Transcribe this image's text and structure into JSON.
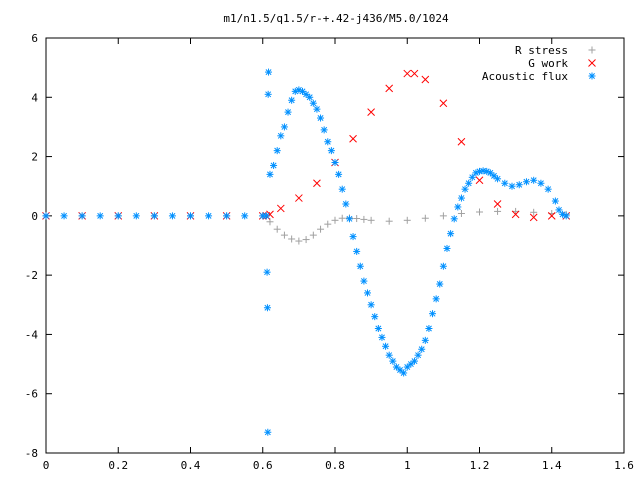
{
  "chart_data": {
    "type": "scatter",
    "title": "m1/n1.5/q1.5/r-+.42-j436/M5.0/1024",
    "xlabel": "",
    "ylabel": "",
    "xlim": [
      0,
      1.6
    ],
    "ylim": [
      -8,
      6
    ],
    "x_ticks": [
      "0",
      "0.2",
      "0.4",
      "0.6",
      "0.8",
      "1",
      "1.2",
      "1.4",
      "1.6"
    ],
    "y_ticks": [
      "-8",
      "-6",
      "-4",
      "-2",
      "0",
      "2",
      "4",
      "6"
    ],
    "x_tick_values": [
      0,
      0.2,
      0.4,
      0.6,
      0.8,
      1.0,
      1.2,
      1.4,
      1.6
    ],
    "y_tick_values": [
      -8,
      -6,
      -4,
      -2,
      0,
      2,
      4,
      6
    ],
    "grid": false,
    "legend_position": "top-right",
    "series": [
      {
        "name": "R stress",
        "marker": "+",
        "color": "#a0a0a0",
        "x": [
          0.0,
          0.1,
          0.2,
          0.3,
          0.4,
          0.5,
          0.6,
          0.61,
          0.62,
          0.64,
          0.66,
          0.68,
          0.7,
          0.72,
          0.74,
          0.76,
          0.78,
          0.8,
          0.82,
          0.84,
          0.86,
          0.88,
          0.9,
          0.95,
          1.0,
          1.05,
          1.1,
          1.15,
          1.2,
          1.25,
          1.3,
          1.35,
          1.4,
          1.44
        ],
        "y": [
          0.0,
          0.0,
          0.0,
          0.0,
          0.0,
          0.0,
          0.0,
          0.0,
          -0.2,
          -0.45,
          -0.65,
          -0.78,
          -0.85,
          -0.8,
          -0.65,
          -0.45,
          -0.28,
          -0.15,
          -0.08,
          -0.07,
          -0.09,
          -0.12,
          -0.15,
          -0.18,
          -0.15,
          -0.08,
          0.0,
          0.08,
          0.13,
          0.15,
          0.15,
          0.12,
          0.08,
          0.05
        ]
      },
      {
        "name": "G work",
        "marker": "x",
        "color": "#ff0000",
        "x": [
          0.0,
          0.1,
          0.2,
          0.3,
          0.4,
          0.5,
          0.6,
          0.61,
          0.62,
          0.65,
          0.7,
          0.75,
          0.8,
          0.85,
          0.9,
          0.95,
          1.0,
          1.02,
          1.05,
          1.1,
          1.15,
          1.2,
          1.25,
          1.3,
          1.35,
          1.4,
          1.44
        ],
        "y": [
          0.0,
          0.0,
          0.0,
          0.0,
          0.0,
          0.0,
          0.0,
          0.0,
          0.05,
          0.25,
          0.6,
          1.1,
          1.8,
          2.6,
          3.5,
          4.3,
          4.8,
          4.8,
          4.6,
          3.8,
          2.5,
          1.2,
          0.4,
          0.05,
          -0.05,
          0.0,
          0.0
        ]
      },
      {
        "name": "Acoustic flux",
        "marker": "*",
        "color": "#0090ff",
        "x": [
          0.0,
          0.05,
          0.1,
          0.15,
          0.2,
          0.25,
          0.3,
          0.35,
          0.4,
          0.45,
          0.5,
          0.55,
          0.6,
          0.61,
          0.612,
          0.613,
          0.614,
          0.615,
          0.616,
          0.62,
          0.63,
          0.64,
          0.65,
          0.66,
          0.67,
          0.68,
          0.69,
          0.7,
          0.71,
          0.72,
          0.73,
          0.74,
          0.75,
          0.76,
          0.77,
          0.78,
          0.79,
          0.8,
          0.81,
          0.82,
          0.83,
          0.84,
          0.85,
          0.86,
          0.87,
          0.88,
          0.89,
          0.9,
          0.91,
          0.92,
          0.93,
          0.94,
          0.95,
          0.96,
          0.97,
          0.98,
          0.99,
          1.0,
          1.01,
          1.02,
          1.03,
          1.04,
          1.05,
          1.06,
          1.07,
          1.08,
          1.09,
          1.1,
          1.11,
          1.12,
          1.13,
          1.14,
          1.15,
          1.16,
          1.17,
          1.18,
          1.19,
          1.2,
          1.21,
          1.22,
          1.23,
          1.24,
          1.25,
          1.27,
          1.29,
          1.31,
          1.33,
          1.35,
          1.37,
          1.39,
          1.41,
          1.42,
          1.43,
          1.44
        ],
        "y": [
          0.0,
          0.0,
          0.0,
          0.0,
          0.0,
          0.0,
          0.0,
          0.0,
          0.0,
          0.0,
          0.0,
          0.0,
          0.0,
          0.0,
          -1.9,
          -3.1,
          -7.3,
          4.1,
          4.85,
          1.4,
          1.7,
          2.2,
          2.7,
          3.0,
          3.5,
          3.9,
          4.2,
          4.25,
          4.2,
          4.1,
          4.0,
          3.8,
          3.6,
          3.3,
          2.9,
          2.5,
          2.2,
          1.8,
          1.4,
          0.9,
          0.4,
          -0.1,
          -0.7,
          -1.2,
          -1.7,
          -2.2,
          -2.6,
          -3.0,
          -3.4,
          -3.8,
          -4.1,
          -4.4,
          -4.7,
          -4.9,
          -5.1,
          -5.2,
          -5.3,
          -5.1,
          -5.0,
          -4.9,
          -4.7,
          -4.5,
          -4.2,
          -3.8,
          -3.3,
          -2.8,
          -2.3,
          -1.7,
          -1.1,
          -0.6,
          -0.1,
          0.3,
          0.6,
          0.9,
          1.1,
          1.3,
          1.45,
          1.5,
          1.52,
          1.5,
          1.45,
          1.35,
          1.25,
          1.1,
          1.0,
          1.05,
          1.15,
          1.2,
          1.1,
          0.9,
          0.5,
          0.2,
          0.05,
          0.0
        ]
      }
    ]
  }
}
